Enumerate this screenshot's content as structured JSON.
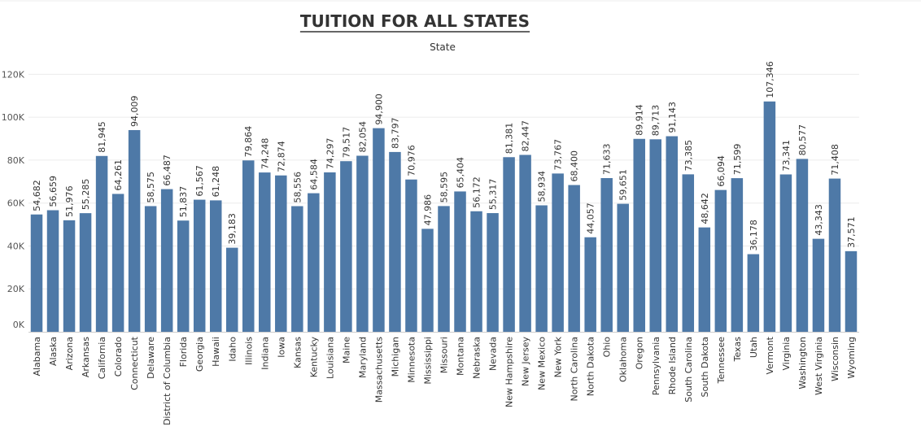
{
  "chart_data": {
    "type": "bar",
    "title": "TUITION FOR ALL STATES",
    "header": "State",
    "xlabel": "",
    "ylabel": "",
    "ylim": [
      0,
      130000
    ],
    "yticks": [
      0,
      20000,
      40000,
      60000,
      80000,
      100000,
      120000
    ],
    "ytick_labels": [
      "0K",
      "20K",
      "40K",
      "60K",
      "80K",
      "100K",
      "120K"
    ],
    "grid": true,
    "bar_color": "#4e79a7",
    "categories": [
      "Alabama",
      "Alaska",
      "Arizona",
      "Arkansas",
      "California",
      "Colorado",
      "Connecticut",
      "Delaware",
      "District of Columbia",
      "Florida",
      "Georgia",
      "Hawaii",
      "Idaho",
      "Illinois",
      "Indiana",
      "Iowa",
      "Kansas",
      "Kentucky",
      "Louisiana",
      "Maine",
      "Maryland",
      "Massachusetts",
      "Michigan",
      "Minnesota",
      "Mississippi",
      "Missouri",
      "Montana",
      "Nebraska",
      "Nevada",
      "New Hampshire",
      "New Jersey",
      "New Mexico",
      "New York",
      "North Carolina",
      "North Dakota",
      "Ohio",
      "Oklahoma",
      "Oregon",
      "Pennsylvania",
      "Rhode Island",
      "South Carolina",
      "South Dakota",
      "Tennessee",
      "Texas",
      "Utah",
      "Vermont",
      "Virginia",
      "Washington",
      "West Virginia",
      "Wisconsin",
      "Wyoming"
    ],
    "values": [
      54682,
      56659,
      51976,
      55285,
      81945,
      64261,
      94009,
      58575,
      66487,
      51837,
      61567,
      61248,
      39183,
      79864,
      74248,
      72874,
      58556,
      64584,
      74297,
      79517,
      82054,
      94900,
      83797,
      70976,
      47986,
      58595,
      65404,
      56172,
      55317,
      81381,
      82447,
      58934,
      73767,
      68400,
      44057,
      71633,
      59651,
      89914,
      89713,
      91143,
      73385,
      48642,
      66094,
      71599,
      36178,
      107346,
      73341,
      80577,
      43343,
      71408,
      37571
    ],
    "value_labels": [
      "54,682",
      "56,659",
      "51,976",
      "55,285",
      "81,945",
      "64,261",
      "94,009",
      "58,575",
      "66,487",
      "51,837",
      "61,567",
      "61,248",
      "39,183",
      "79,864",
      "74,248",
      "72,874",
      "58,556",
      "64,584",
      "74,297",
      "79,517",
      "82,054",
      "94,900",
      "83,797",
      "70,976",
      "47,986",
      "58,595",
      "65,404",
      "56,172",
      "55,317",
      "81,381",
      "82,447",
      "58,934",
      "73,767",
      "68,400",
      "44,057",
      "71,633",
      "59,651",
      "89,914",
      "89,713",
      "91,143",
      "73,385",
      "48,642",
      "66,094",
      "71,599",
      "36,178",
      "107,346",
      "73,341",
      "80,577",
      "43,343",
      "71,408",
      "37,571"
    ]
  }
}
